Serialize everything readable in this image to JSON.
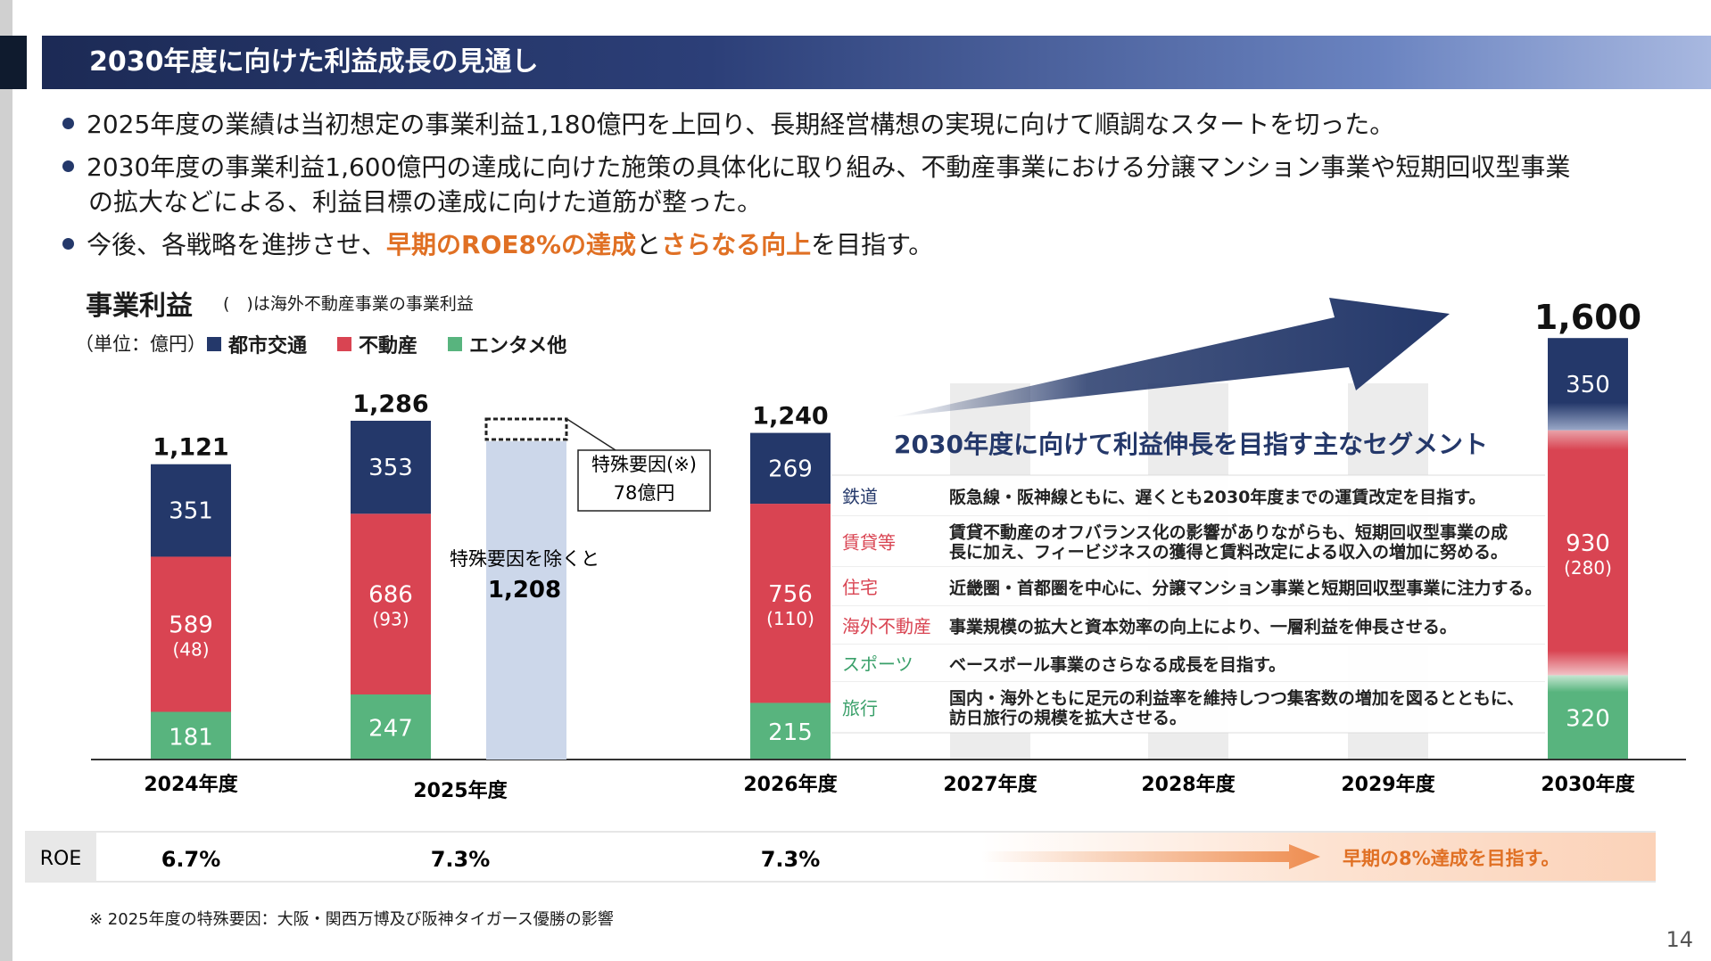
{
  "header": {
    "title": "2030年度に向けた利益成長の見通し"
  },
  "bullets": [
    {
      "line1": "2025年度の業績は当初想定の事業利益1,180億円を上回り、長期経営構想の実現に向けて順調なスタートを切った。"
    },
    {
      "line1": "2030年度の事業利益1,600億円の達成に向けた施策の具体化に取り組み、不動産事業における分譲マンション事業や短期回収型事業",
      "line2": "の拡大などによる、利益目標の達成に向けた道筋が整った。"
    },
    {
      "pre": "今後、各戦略を進捗させ、",
      "hl1": "早期のROE8%の達成",
      "mid": "と",
      "hl2": "さらなる向上",
      "post": "を目指す。"
    }
  ],
  "section": {
    "title": "事業利益",
    "note": "(　)は海外不動産事業の事業利益",
    "unit": "（単位：億円）"
  },
  "legend": [
    {
      "label": "都市交通",
      "color": "#24386a"
    },
    {
      "label": "不動産",
      "color": "#d94452"
    },
    {
      "label": "エンタメ他",
      "color": "#58b47e"
    }
  ],
  "chart_data": {
    "type": "bar",
    "stacked": true,
    "categories": [
      "2024年度",
      "2025年度",
      "2026年度",
      "2027年度",
      "2028年度",
      "2029年度",
      "2030年度"
    ],
    "series": [
      {
        "name": "都市交通",
        "values": [
          351,
          353,
          269,
          null,
          null,
          null,
          350
        ]
      },
      {
        "name": "不動産",
        "values": [
          589,
          686,
          756,
          null,
          null,
          null,
          930
        ]
      },
      {
        "name": "エンタメ他",
        "values": [
          181,
          247,
          215,
          null,
          null,
          null,
          320
        ]
      }
    ],
    "overseas_real_estate": [
      "(48)",
      "(93)",
      "(110)",
      null,
      null,
      null,
      "(280)"
    ],
    "totals": [
      "1,121",
      "1,286",
      "1,240",
      null,
      null,
      null,
      "1,600"
    ],
    "value_labels": {
      "urban": [
        "351",
        "353",
        "269",
        "350"
      ],
      "realestate": [
        "589",
        "686",
        "756",
        "930"
      ],
      "enta": [
        "181",
        "247",
        "215",
        "320"
      ]
    },
    "excluding_special": {
      "category": "2025年度",
      "value": 1208,
      "text": "特殊要因を除くと",
      "value_text": "1,208"
    },
    "special_factor": {
      "label": "特殊要因(※)",
      "value": 78,
      "value_text": "78億円"
    },
    "ylim": [
      0,
      1650
    ]
  },
  "segments": {
    "title": "2030年度に向けて利益伸長を目指す主なセグメント",
    "rows": [
      {
        "name": "鉄道",
        "color": "#24386a",
        "desc": [
          "阪急線・阪神線ともに、遅くとも2030年度までの運賃改定を目指す。"
        ]
      },
      {
        "name": "賃貸等",
        "color": "#d94452",
        "desc": [
          "賃貸不動産のオフバランス化の影響がありながらも、短期回収型事業の成",
          "長に加え、フィービジネスの獲得と賃料改定による収入の増加に努める。"
        ]
      },
      {
        "name": "住宅",
        "color": "#d94452",
        "desc": [
          "近畿圏・首都圏を中心に、分譲マンション事業と短期回収型事業に注力する。"
        ]
      },
      {
        "name": "海外不動産",
        "color": "#d94452",
        "desc": [
          "事業規模の拡大と資本効率の向上により、一層利益を伸長させる。"
        ]
      },
      {
        "name": "スポーツ",
        "color": "#3aa06a",
        "desc": [
          "ベースボール事業のさらなる成長を目指す。"
        ]
      },
      {
        "name": "旅行",
        "color": "#3aa06a",
        "desc": [
          "国内・海外ともに足元の利益率を維持しつつ集客数の増加を図るとともに、",
          "訪日旅行の規模を拡大させる。"
        ]
      }
    ]
  },
  "roe": {
    "label": "ROE",
    "values": [
      "6.7%",
      "7.3%",
      "7.3%"
    ],
    "target": "早期の8%達成を目指す。"
  },
  "footnote": "※ 2025年度の特殊要因：大阪・関西万博及び阪神タイガース優勝の影響",
  "page_number": "14"
}
